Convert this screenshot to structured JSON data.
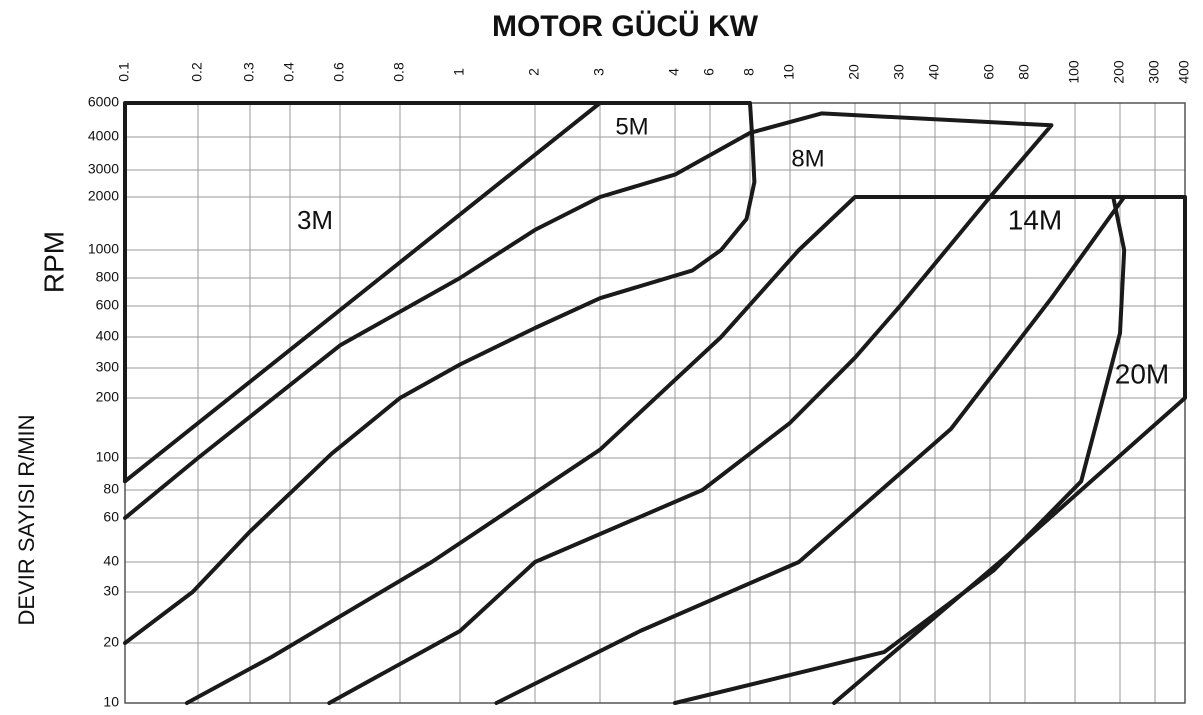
{
  "chart_data": {
    "type": "line",
    "title": "MOTOR GÜCÜ KW",
    "ylabel": "DEVIR SAYISI  R/MIN",
    "y_unit": "RPM",
    "log_x": true,
    "log_y": true,
    "grid": true,
    "color": "#1a1a1a",
    "xlim": [
      0.1,
      400
    ],
    "ylim": [
      10,
      6000
    ],
    "xticks": [
      0.1,
      0.2,
      0.3,
      0.4,
      0.6,
      0.8,
      1,
      2,
      3,
      4,
      6,
      8,
      10,
      20,
      30,
      40,
      60,
      80,
      100,
      200,
      300,
      400
    ],
    "yticks": [
      10,
      20,
      30,
      40,
      60,
      80,
      100,
      200,
      300,
      400,
      600,
      800,
      1000,
      2000,
      3000,
      4000,
      6000
    ],
    "annotations": [
      "3M",
      "5M",
      "8M",
      "14M",
      "20M"
    ],
    "series": [
      {
        "x": [
          0.1,
          0.1,
          8,
          8.1,
          8.2,
          7.8,
          6.5,
          4.9,
          3,
          2,
          1,
          0.8,
          0.56,
          0.3,
          0.19,
          0.1
        ],
        "values": [
          85,
          6000,
          6000,
          4000,
          2500,
          1500,
          1000,
          850,
          650,
          450,
          310,
          200,
          105,
          53,
          30,
          20
        ]
      },
      {
        "x": [
          0.1,
          3
        ],
        "values": [
          85,
          6000
        ]
      },
      {
        "x": [
          0.1,
          0.2,
          0.6,
          1,
          2,
          3,
          4,
          8,
          14,
          90,
          60,
          30,
          20,
          10,
          5.5,
          2,
          1,
          0.55
        ],
        "values": [
          60,
          100,
          370,
          800,
          1300,
          2000,
          2800,
          4200,
          5300,
          4600,
          2000,
          600,
          330,
          150,
          80,
          40,
          22,
          10
        ]
      },
      {
        "x": [
          0.18,
          0.35,
          0.9,
          3,
          6.5,
          11,
          20,
          400,
          400,
          70,
          16
        ],
        "values": [
          10,
          17,
          40,
          110,
          400,
          1000,
          2000,
          2000,
          200,
          43,
          10
        ]
      },
      {
        "x": [
          1.4,
          3.5,
          11,
          45,
          90,
          210
        ],
        "values": [
          10,
          22,
          40,
          140,
          650,
          2000
        ]
      },
      {
        "x": [
          4,
          26,
          62,
          110,
          200,
          210,
          180
        ],
        "values": [
          10,
          18,
          37,
          85,
          420,
          1000,
          2000
        ]
      }
    ]
  }
}
